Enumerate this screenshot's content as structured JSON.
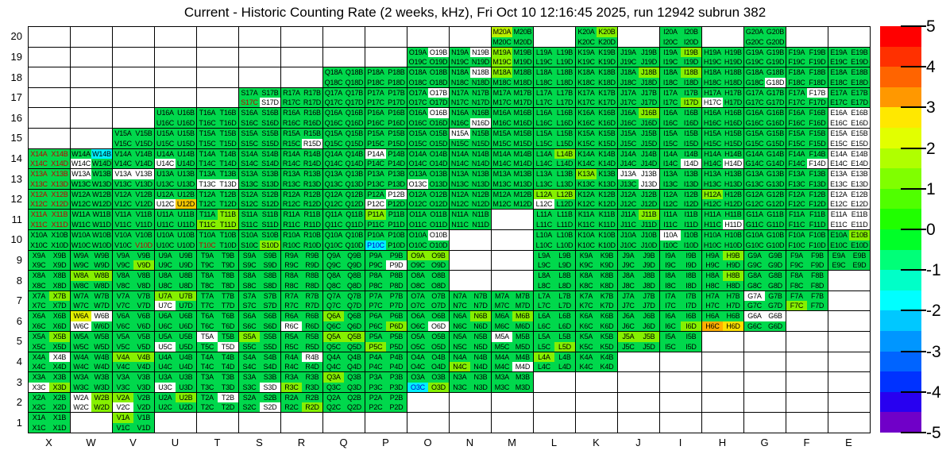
{
  "chart_data": {
    "type": "heatmap",
    "title": "Current - Historic Counting Rate (2 weeks, kHz), Fri Oct 10 12:16:45 2025, run 12942 subrun 382",
    "x_axis": [
      "X",
      "W",
      "V",
      "U",
      "T",
      "S",
      "R",
      "Q",
      "P",
      "O",
      "N",
      "M",
      "L",
      "K",
      "J",
      "I",
      "H",
      "G",
      "F",
      "E"
    ],
    "y_axis": [
      "20",
      "19",
      "18",
      "17",
      "16",
      "15",
      "14",
      "13",
      "12",
      "11",
      "10",
      "9",
      "8",
      "7",
      "6",
      "5",
      "4",
      "3",
      "2",
      "1"
    ],
    "sub_cells": [
      "A",
      "B",
      "C",
      "D"
    ],
    "label_pattern": "{column}{row}{sub}",
    "palette": {
      "default": "#00D84C",
      "w": "#FFFFFF",
      "l": "#86F000",
      "yl": "#E2F000",
      "ml": "#BBF000",
      "y": "#FFE000",
      "o": "#FFAE00",
      "am": "#F5C800",
      "c": "#00EFFF"
    },
    "text_colors": {
      "default": "#000000",
      "r": "#C00000",
      "b": "#0000CC"
    },
    "present": {
      "20": "M K I G",
      "19": "O N M L K J I H G F E",
      "18": "Q P O N M L K J I H G F E",
      "17": "S R Q P O N M L K J I H G F E",
      "16": "U T S R Q P O N M L K J I H G F E",
      "15": "V U T S R Q P O N M L K J I H G F E",
      "14": "X W V U T S R Q P O N M L K J I H G F E",
      "13": "X W V U T S R Q P O N M L K J I H G F E",
      "12": "X W V U T S R Q P O N M L K J I H G F E",
      "11": "X W V U T S R Q P O N L K J I H G F E",
      "10": "X W V U T S R Q P O L K J I H G F E",
      "9": "X W V U T S R Q P O L K J I H G F E",
      "8": "X W V U T S R Q P O L K J I H G F",
      "7": "X W V U T S R Q P O N M L K J I H G F",
      "6": "X W V U T S R Q P O N M L K J I H G",
      "5": "X W V U T S R Q P O N M L K J I",
      "4": "X W V U T S R Q P O N M L K",
      "3": "X W V U T S R Q P O N M",
      "2": "X W V U T S R Q P",
      "1": "X V"
    },
    "bg_overrides": {
      "M20A": "ml",
      "K20B": "l",
      "O19B": "w",
      "N19B": "w",
      "M19A": "l",
      "M19C": "l",
      "I19B": "l",
      "N18B": "w",
      "G18D": "w",
      "M18A": "l",
      "J18B": "l",
      "I18B": "l",
      "S17D": "w",
      "O17B": "w",
      "H17C": "w",
      "F17B": "w",
      "I17D": "l",
      "O16B": "w",
      "N16D": "w",
      "E16A": "w",
      "E16B": "w",
      "E16C": "w",
      "E16D": "w",
      "J16B": "l",
      "N15A": "w",
      "R15D": "w",
      "E15A": "w",
      "E15B": "w",
      "E15C": "w",
      "E15D": "w",
      "W14B": "c",
      "W14C": "w",
      "U14C": "w",
      "P14A": "w",
      "I14D": "w",
      "H14D": "w",
      "F14D": "w",
      "E14A": "w",
      "E14B": "w",
      "E14C": "w",
      "E14D": "w",
      "L14B": "l",
      "W13A": "w",
      "V13A": "w",
      "V13B": "w",
      "T13C": "w",
      "T13D": "w",
      "O13C": "w",
      "J13A": "w",
      "J13B": "w",
      "J13D": "w",
      "E13A": "w",
      "E13B": "w",
      "E13C": "w",
      "E13D": "w",
      "K13A": "l",
      "U12C": "w",
      "U12D": "am",
      "P12B": "w",
      "P12C": "w",
      "L12C": "w",
      "E12A": "w",
      "E12B": "w",
      "E12C": "w",
      "E12D": "w",
      "L12A": "l",
      "L12B": "l",
      "H12A": "l",
      "H11D": "w",
      "E11A": "w",
      "E11B": "w",
      "E11C": "w",
      "E11D": "w",
      "P11A": "l",
      "J11B": "l",
      "T11B": "l",
      "T11C": "l",
      "T11D": "l",
      "O10B": "w",
      "I10A": "w",
      "P10C": "c",
      "E10B": "l",
      "S10D": "l",
      "P9D": "w",
      "O9A": "l",
      "O9B": "l",
      "H9B": "l",
      "V9D": "l",
      "W8A": "l",
      "W8B": "l",
      "H8B": "l",
      "U7C": "w",
      "G7A": "w",
      "U7A": "l",
      "U7B": "l",
      "F7C": "l",
      "X7B": "l",
      "W6A": "yl",
      "W6B": "w",
      "W6C": "w",
      "R6C": "w",
      "O6D": "w",
      "G6A": "w",
      "G6B": "w",
      "H6C": "o",
      "H6D": "y",
      "Q6A": "l",
      "P6D": "l",
      "N6B": "l",
      "M6B": "l",
      "I6D": "l",
      "T5A": "w",
      "U5C": "w",
      "T5D": "w",
      "M5A": "w",
      "X5B": "l",
      "S5A": "l",
      "Q5A": "l",
      "Q5B": "l",
      "P5C": "l",
      "L5D": "l",
      "J5A": "l",
      "J5B": "l",
      "X4B": "w",
      "R4B": "w",
      "M4D": "w",
      "V4A": "l",
      "V4B": "l",
      "N4C": "l",
      "L4A": "l",
      "X3C": "w",
      "U3C": "w",
      "S3D": "w",
      "O3C": "c",
      "X3D": "l",
      "Q3A": "l",
      "R3C": "l",
      "O3D": "l",
      "W2A": "w",
      "W2C": "w",
      "V2C": "w",
      "T2B": "w",
      "S2D": "w",
      "V2A": "l",
      "W2B": "l",
      "W2D": "l",
      "U2B": "l",
      "R2D": "l",
      "V1A": "l"
    },
    "fg_overrides": {
      "X14A": "r",
      "X14B": "r",
      "X14C": "r",
      "X14D": "r",
      "X13A": "r",
      "X13B": "r",
      "X13C": "r",
      "X13D": "r",
      "X12A": "r",
      "X12B": "r",
      "X12C": "r",
      "X12D": "r",
      "X11A": "r",
      "X11B": "r",
      "X11C": "r",
      "X11D": "r",
      "S17C": "r",
      "T10C": "r",
      "V10D": "r",
      "P10C": "b",
      "O3C": "b"
    },
    "colorbar": {
      "min": -5,
      "max": 5,
      "tick_values": [
        5,
        4,
        3,
        2,
        1,
        0,
        -1,
        -2,
        -3,
        -4,
        -5
      ],
      "segment_colors": [
        "#FF0000",
        "#FF3000",
        "#FF6400",
        "#FF9800",
        "#FFE800",
        "#E2FF00",
        "#B0FF00",
        "#80FF00",
        "#50FF00",
        "#20FF00",
        "#00FF28",
        "#00FF78",
        "#00FFC8",
        "#00FFFF",
        "#00C8FF",
        "#0096FF",
        "#0064FF",
        "#0032FF",
        "#2800F0",
        "#7000C8"
      ]
    }
  }
}
